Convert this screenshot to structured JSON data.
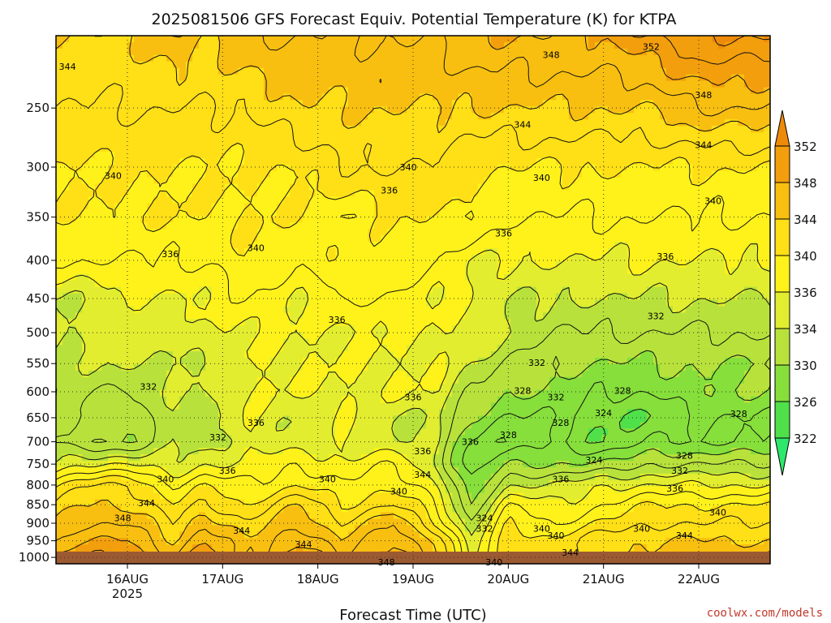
{
  "chart_data": {
    "type": "heatmap",
    "title": "2025081506 GFS Forecast Equiv. Potential Temperature (K) for KTPA",
    "xlabel": "Forecast Time (UTC)",
    "ylabel": "",
    "y_scale": "log",
    "y_inverted": true,
    "y_ticks": [
      250,
      300,
      350,
      400,
      450,
      500,
      550,
      600,
      650,
      700,
      750,
      800,
      850,
      900,
      950,
      1000
    ],
    "ylim": [
      1020,
      200
    ],
    "x_ticks": [
      {
        "day": 16,
        "label": "16AUG",
        "sublabel": "2025"
      },
      {
        "day": 17,
        "label": "17AUG",
        "sublabel": ""
      },
      {
        "day": 18,
        "label": "18AUG",
        "sublabel": ""
      },
      {
        "day": 19,
        "label": "19AUG",
        "sublabel": ""
      },
      {
        "day": 20,
        "label": "20AUG",
        "sublabel": ""
      },
      {
        "day": 21,
        "label": "21AUG",
        "sublabel": ""
      },
      {
        "day": 22,
        "label": "22AUG",
        "sublabel": ""
      }
    ],
    "xlim": [
      15.25,
      22.75
    ],
    "grid": true,
    "contour_interval_K": 2,
    "colorbar": {
      "levels": [
        322,
        326,
        330,
        334,
        336,
        340,
        344,
        348,
        352
      ],
      "colors": [
        "#2ee86b",
        "#4fe04a",
        "#86df3a",
        "#b8e23b",
        "#e2ed2f",
        "#fff21a",
        "#ffdf16",
        "#f8bf10",
        "#f39e0c",
        "#ee8a0a"
      ]
    },
    "field_samples": {
      "x": [
        15.25,
        15.5,
        16.0,
        16.5,
        16.8,
        17.25,
        17.8,
        18.25,
        18.8,
        19.25,
        19.6,
        20.0,
        20.5,
        21.0,
        21.5,
        22.0,
        22.75
      ],
      "p": [
        1000,
        950,
        900,
        850,
        800,
        750,
        700,
        650,
        600,
        550,
        500,
        450,
        400,
        350,
        300,
        250,
        200
      ],
      "theta_e": [
        [
          348,
          350,
          350,
          346,
          350,
          344,
          350,
          346,
          350,
          344,
          336,
          342,
          340,
          344,
          344,
          346,
          346
        ],
        [
          346,
          348,
          348,
          344,
          348,
          344,
          348,
          344,
          348,
          344,
          334,
          342,
          340,
          344,
          344,
          344,
          344
        ],
        [
          344,
          346,
          346,
          342,
          346,
          342,
          346,
          342,
          346,
          340,
          332,
          340,
          338,
          340,
          342,
          342,
          342
        ],
        [
          342,
          344,
          344,
          340,
          342,
          340,
          344,
          340,
          342,
          338,
          330,
          338,
          336,
          338,
          340,
          340,
          340
        ],
        [
          340,
          342,
          342,
          338,
          340,
          338,
          340,
          338,
          340,
          336,
          328,
          334,
          334,
          336,
          336,
          336,
          336
        ],
        [
          334,
          336,
          336,
          334,
          336,
          336,
          338,
          336,
          338,
          334,
          326,
          330,
          330,
          330,
          332,
          332,
          332
        ],
        [
          332,
          330,
          330,
          334,
          332,
          336,
          334,
          336,
          334,
          334,
          328,
          326,
          328,
          326,
          328,
          328,
          328
        ],
        [
          334,
          332,
          330,
          334,
          332,
          336,
          334,
          336,
          334,
          334,
          330,
          328,
          328,
          326,
          326,
          328,
          328
        ],
        [
          334,
          332,
          332,
          334,
          334,
          336,
          336,
          336,
          336,
          336,
          332,
          330,
          330,
          328,
          328,
          330,
          330
        ],
        [
          334,
          334,
          334,
          334,
          334,
          336,
          336,
          336,
          336,
          336,
          334,
          332,
          330,
          330,
          330,
          330,
          330
        ],
        [
          334,
          334,
          336,
          334,
          336,
          336,
          336,
          336,
          336,
          336,
          336,
          334,
          332,
          332,
          332,
          332,
          332
        ],
        [
          334,
          334,
          336,
          336,
          336,
          338,
          336,
          338,
          338,
          336,
          336,
          334,
          334,
          334,
          334,
          334,
          334
        ],
        [
          338,
          338,
          338,
          338,
          338,
          340,
          338,
          340,
          340,
          338,
          336,
          336,
          336,
          336,
          336,
          336,
          336
        ],
        [
          340,
          340,
          340,
          340,
          340,
          340,
          340,
          338,
          340,
          340,
          340,
          338,
          338,
          338,
          338,
          338,
          338
        ],
        [
          340,
          340,
          340,
          340,
          340,
          340,
          340,
          342,
          342,
          342,
          340,
          340,
          340,
          340,
          340,
          340,
          340
        ],
        [
          342,
          342,
          342,
          342,
          342,
          342,
          344,
          344,
          344,
          344,
          344,
          344,
          344,
          344,
          344,
          346,
          346
        ],
        [
          344,
          344,
          344,
          346,
          344,
          346,
          346,
          346,
          346,
          346,
          348,
          348,
          348,
          348,
          350,
          352,
          352
        ]
      ]
    },
    "contour_labels": [
      {
        "x": 15.37,
        "p": 220,
        "text": "344"
      },
      {
        "x": 15.85,
        "p": 308,
        "text": "340"
      },
      {
        "x": 16.45,
        "p": 392,
        "text": "336"
      },
      {
        "x": 16.22,
        "p": 590,
        "text": "332"
      },
      {
        "x": 16.95,
        "p": 690,
        "text": "332"
      },
      {
        "x": 17.35,
        "p": 660,
        "text": "336"
      },
      {
        "x": 17.35,
        "p": 385,
        "text": "340"
      },
      {
        "x": 16.4,
        "p": 785,
        "text": "340"
      },
      {
        "x": 17.05,
        "p": 765,
        "text": "336"
      },
      {
        "x": 16.2,
        "p": 845,
        "text": "344"
      },
      {
        "x": 15.95,
        "p": 885,
        "text": "348"
      },
      {
        "x": 17.2,
        "p": 920,
        "text": "344"
      },
      {
        "x": 17.85,
        "p": 960,
        "text": "344"
      },
      {
        "x": 18.1,
        "p": 785,
        "text": "340"
      },
      {
        "x": 18.2,
        "p": 480,
        "text": "336"
      },
      {
        "x": 18.75,
        "p": 322,
        "text": "336"
      },
      {
        "x": 19.0,
        "p": 610,
        "text": "336"
      },
      {
        "x": 19.1,
        "p": 720,
        "text": "336"
      },
      {
        "x": 18.85,
        "p": 815,
        "text": "340"
      },
      {
        "x": 19.1,
        "p": 775,
        "text": "344"
      },
      {
        "x": 18.72,
        "p": 1015,
        "text": "348"
      },
      {
        "x": 18.95,
        "p": 300,
        "text": "340"
      },
      {
        "x": 19.6,
        "p": 700,
        "text": "336"
      },
      {
        "x": 19.95,
        "p": 368,
        "text": "336"
      },
      {
        "x": 20.35,
        "p": 310,
        "text": "340"
      },
      {
        "x": 20.15,
        "p": 263,
        "text": "344"
      },
      {
        "x": 20.3,
        "p": 548,
        "text": "332"
      },
      {
        "x": 20.15,
        "p": 598,
        "text": "328"
      },
      {
        "x": 20.0,
        "p": 685,
        "text": "328"
      },
      {
        "x": 19.75,
        "p": 885,
        "text": "324"
      },
      {
        "x": 19.75,
        "p": 915,
        "text": "332"
      },
      {
        "x": 19.85,
        "p": 1015,
        "text": "340"
      },
      {
        "x": 20.5,
        "p": 610,
        "text": "332"
      },
      {
        "x": 20.55,
        "p": 660,
        "text": "328"
      },
      {
        "x": 21.0,
        "p": 640,
        "text": "324"
      },
      {
        "x": 20.9,
        "p": 740,
        "text": "324"
      },
      {
        "x": 20.55,
        "p": 785,
        "text": "336"
      },
      {
        "x": 20.35,
        "p": 915,
        "text": "340"
      },
      {
        "x": 20.5,
        "p": 935,
        "text": "340"
      },
      {
        "x": 20.65,
        "p": 985,
        "text": "344"
      },
      {
        "x": 21.2,
        "p": 598,
        "text": "328"
      },
      {
        "x": 21.55,
        "p": 475,
        "text": "332"
      },
      {
        "x": 21.65,
        "p": 395,
        "text": "336"
      },
      {
        "x": 21.85,
        "p": 730,
        "text": "328"
      },
      {
        "x": 21.8,
        "p": 765,
        "text": "332"
      },
      {
        "x": 21.75,
        "p": 808,
        "text": "336"
      },
      {
        "x": 21.4,
        "p": 915,
        "text": "340"
      },
      {
        "x": 21.85,
        "p": 935,
        "text": "344"
      },
      {
        "x": 22.2,
        "p": 870,
        "text": "340"
      },
      {
        "x": 22.42,
        "p": 642,
        "text": "328"
      },
      {
        "x": 22.15,
        "p": 333,
        "text": "340"
      },
      {
        "x": 22.05,
        "p": 280,
        "text": "344"
      },
      {
        "x": 22.05,
        "p": 240,
        "text": "348"
      },
      {
        "x": 21.5,
        "p": 207,
        "text": "352"
      },
      {
        "x": 20.45,
        "p": 212,
        "text": "348"
      }
    ],
    "surface_color": "#9b5a32"
  },
  "footer": {
    "credit": "coolwx.com/models"
  }
}
